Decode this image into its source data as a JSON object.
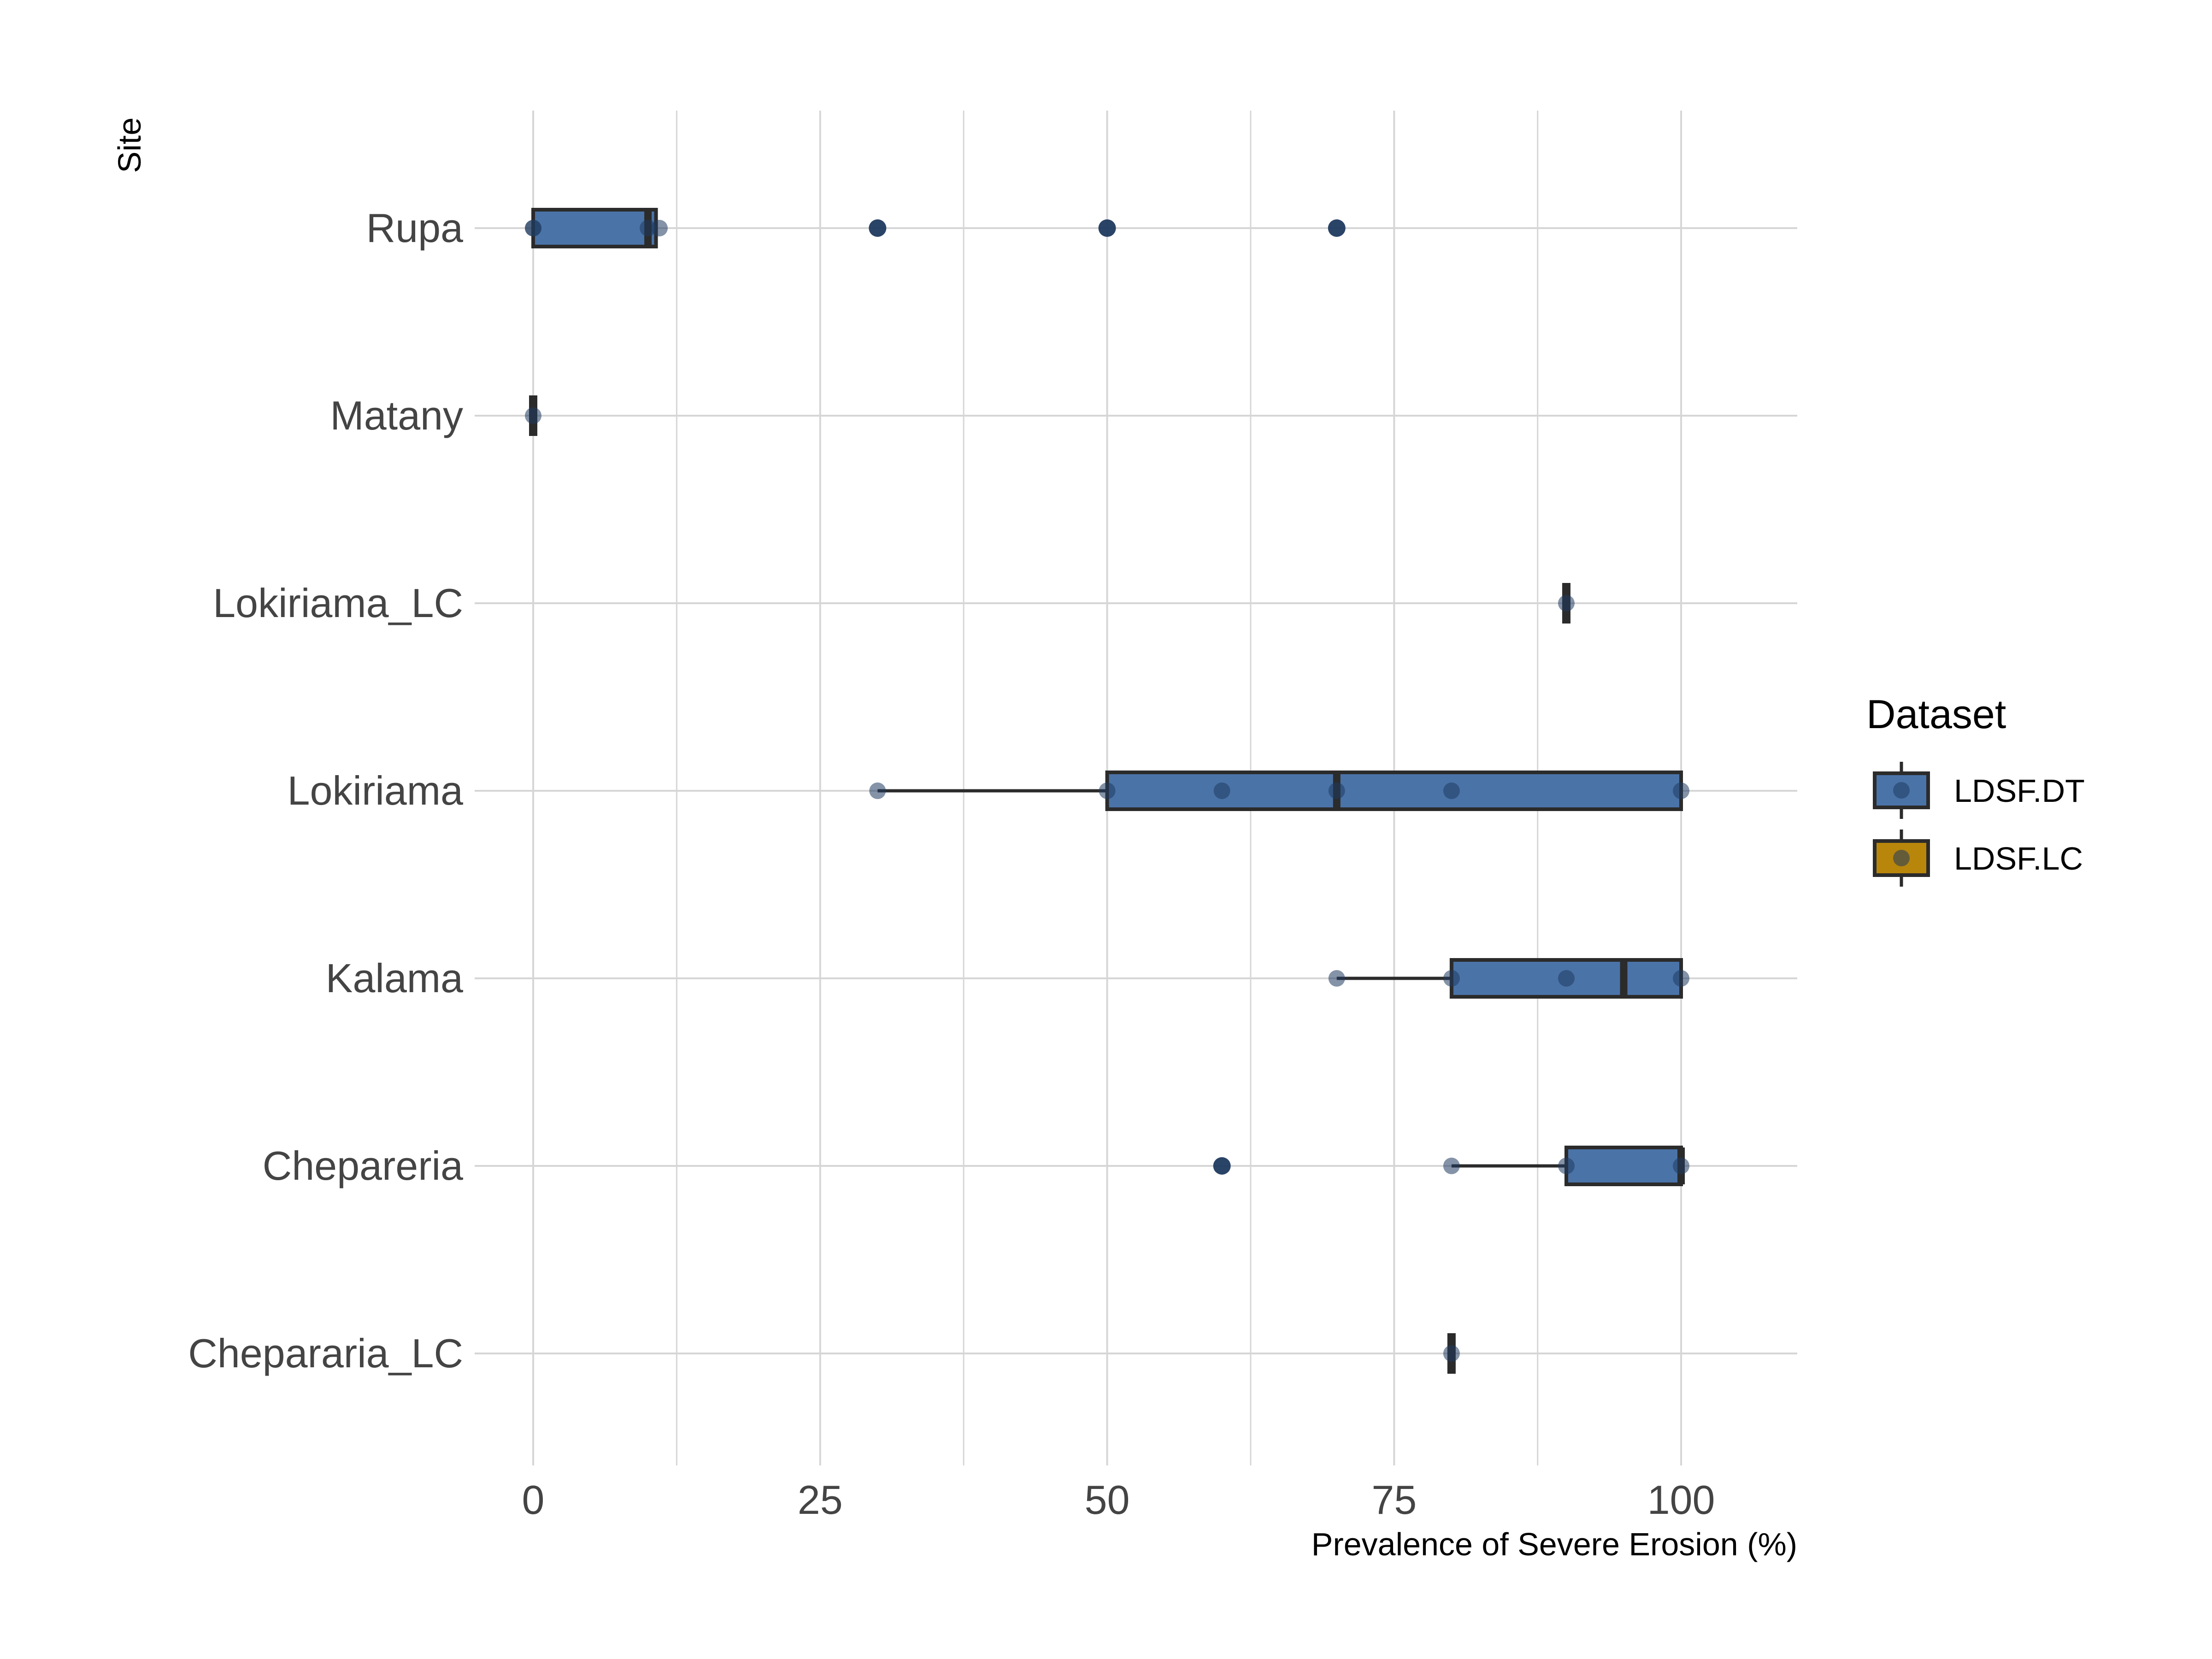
{
  "chart_data": {
    "type": "boxplot",
    "orientation": "horizontal",
    "xlabel": "Prevalence of Severe Erosion (%)",
    "ylabel": "Site",
    "xlim": [
      -6,
      110
    ],
    "x_ticks": [
      0,
      25,
      50,
      75,
      100
    ],
    "x_tick_labels": [
      "0",
      "25",
      "50",
      "75",
      "100"
    ],
    "grid": "major and minor",
    "legend": {
      "title": "Dataset",
      "position": "right",
      "entries": [
        {
          "label": "LDSF.DT",
          "color": "#4A73A8"
        },
        {
          "label": "LDSF.LC",
          "color": "#B8860B"
        }
      ]
    },
    "categories": [
      "Rupa",
      "Matany",
      "Lokiriama_LC",
      "Lokiriama",
      "Kalama",
      "Chepareria",
      "Chepararia_LC"
    ],
    "boxes": [
      {
        "site": "Rupa",
        "dataset": "LDSF.DT",
        "min": 0,
        "q1": 0,
        "median": 10,
        "q3": 10.7,
        "max": 10.7,
        "outliers": [
          30,
          50,
          70
        ],
        "points": [
          0,
          0,
          10,
          11,
          30,
          50,
          70
        ]
      },
      {
        "site": "Matany",
        "dataset": "LDSF.DT",
        "min": 0,
        "q1": 0,
        "median": 0,
        "q3": 0,
        "max": 0,
        "outliers": [],
        "points": [
          0
        ]
      },
      {
        "site": "Lokiriama_LC",
        "dataset": "LDSF.LC",
        "min": 90,
        "q1": 90,
        "median": 90,
        "q3": 90,
        "max": 90,
        "outliers": [],
        "points": [
          90
        ]
      },
      {
        "site": "Lokiriama",
        "dataset": "LDSF.DT",
        "min": 30,
        "q1": 50,
        "median": 70,
        "q3": 100,
        "max": 100,
        "outliers": [],
        "points": [
          30,
          50,
          60,
          70,
          80,
          100
        ]
      },
      {
        "site": "Kalama",
        "dataset": "LDSF.DT",
        "min": 70,
        "q1": 80,
        "median": 95,
        "q3": 100,
        "max": 100,
        "outliers": [],
        "points": [
          70,
          80,
          90,
          100
        ]
      },
      {
        "site": "Chepareria",
        "dataset": "LDSF.DT",
        "min": 80,
        "q1": 90,
        "median": 100,
        "q3": 100,
        "max": 100,
        "outliers": [
          60
        ],
        "points": [
          60,
          80,
          90,
          100
        ]
      },
      {
        "site": "Chepararia_LC",
        "dataset": "LDSF.LC",
        "min": 80,
        "q1": 80,
        "median": 80,
        "q3": 80,
        "max": 80,
        "outliers": [],
        "points": [
          80
        ]
      }
    ],
    "colors": {
      "LDSF.DT": "#4A73A8",
      "LDSF.LC": "#B8860B",
      "outline": "#2B2B2B",
      "point": "#1F3A5F",
      "grid": "#D6D6D6"
    }
  }
}
